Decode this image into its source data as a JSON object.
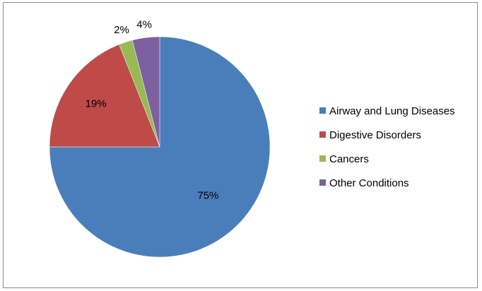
{
  "chart_data": {
    "type": "pie",
    "categories": [
      "Airway and Lung Diseases",
      "Digestive Disorders",
      "Cancers",
      "Other Conditions"
    ],
    "values": [
      75,
      19,
      2,
      4
    ],
    "data_labels": [
      "75%",
      "19%",
      "2%",
      "4%"
    ],
    "colors": [
      "#4a7ebb",
      "#be4b48",
      "#98b954",
      "#7d60a0"
    ],
    "title": "",
    "legend_position": "right",
    "start_angle": "12 o'clock",
    "direction": "clockwise"
  }
}
